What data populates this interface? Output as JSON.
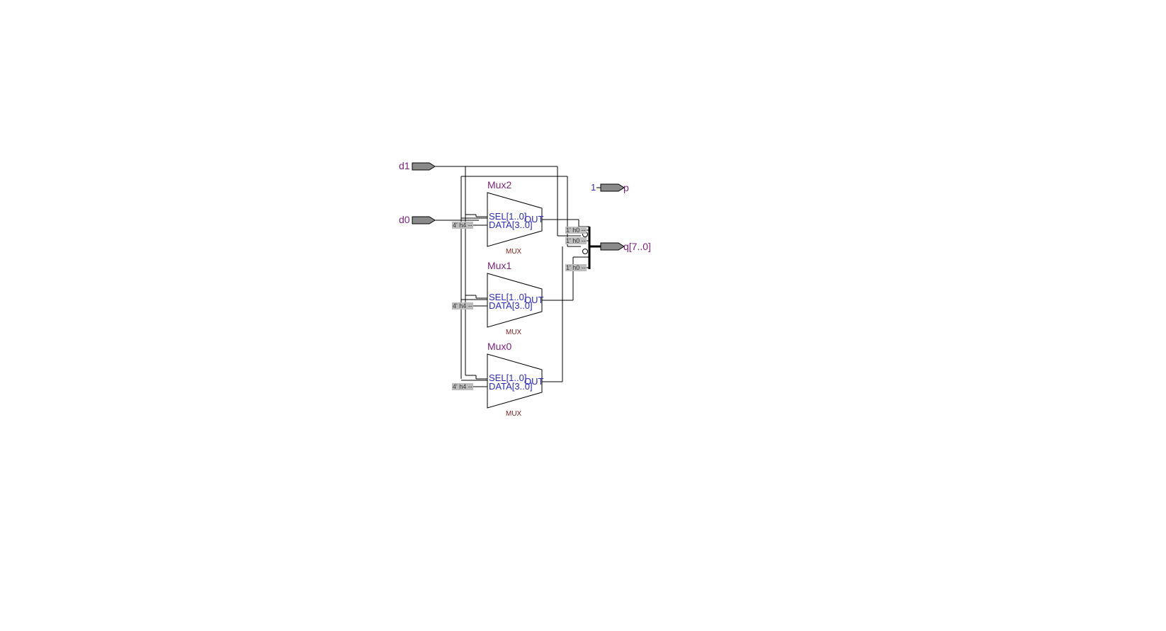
{
  "inputs": {
    "d1": "d1",
    "d0": "d0"
  },
  "outputs": {
    "p": "p",
    "p_const": "1",
    "q": "q[7..0]"
  },
  "muxes": [
    {
      "name": "Mux2",
      "sel": "SEL[1..0]",
      "data": "DATA[3..0]",
      "out": "OUT",
      "type": "MUX",
      "const": "4' h4 --"
    },
    {
      "name": "Mux1",
      "sel": "SEL[1..0]",
      "data": "DATA[3..0]",
      "out": "OUT",
      "type": "MUX",
      "const": "4' h4 --"
    },
    {
      "name": "Mux0",
      "sel": "SEL[1..0]",
      "data": "DATA[3..0]",
      "out": "OUT",
      "type": "MUX",
      "const": "4' h4 --"
    }
  ],
  "bus_consts": [
    "1' h0 --",
    "1' h0 --",
    "1' h0 --"
  ],
  "colors": {
    "instance_label": "#7a1f7a",
    "pin_label": "#2a2ab8",
    "port_fill": "#8a8a8a",
    "const_fill": "#bdbdbd"
  }
}
